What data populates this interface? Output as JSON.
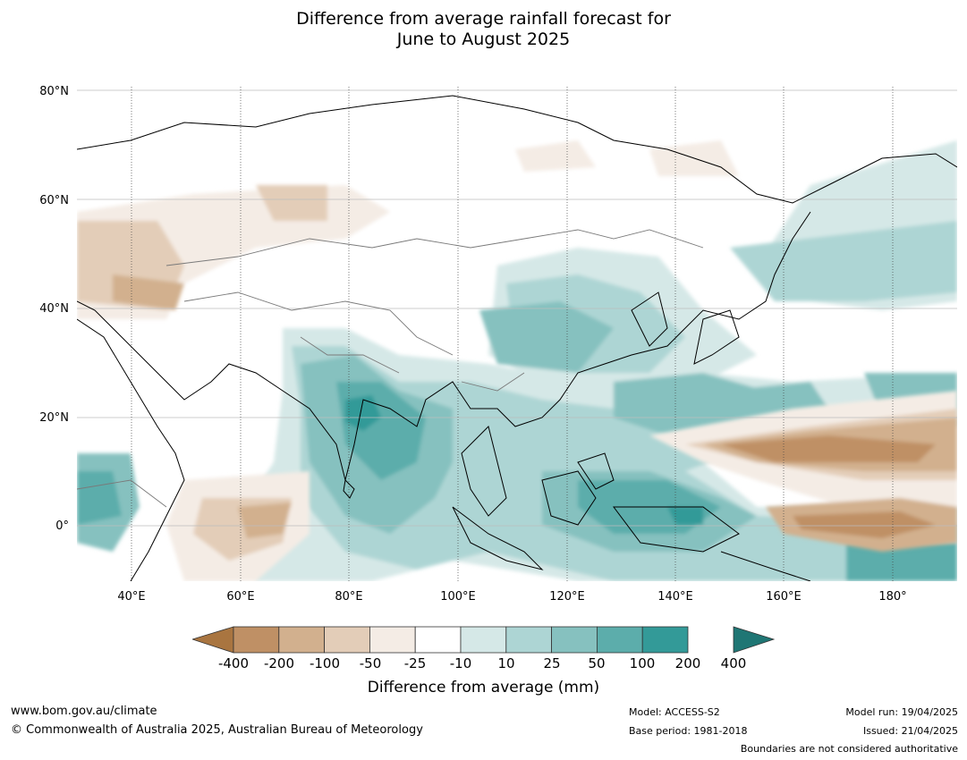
{
  "title_line1": "Difference from average rainfall forecast for",
  "title_line2": "June to August 2025",
  "axes": {
    "lat_labels": [
      "80°N",
      "60°N",
      "40°N",
      "20°N",
      "0°"
    ],
    "lon_labels": [
      "40°E",
      "60°E",
      "80°E",
      "100°E",
      "120°E",
      "140°E",
      "160°E",
      "180°"
    ]
  },
  "legend": {
    "label": "Difference from average (mm)",
    "ticks": [
      "-400",
      "-200",
      "-100",
      "-50",
      "-25",
      "-10",
      "10",
      "25",
      "50",
      "100",
      "200",
      "400"
    ],
    "colors": [
      "#a97540",
      "#bf9065",
      "#d2b08e",
      "#e3cdb8",
      "#f4ece5",
      "#ffffff",
      "#d5e8e7",
      "#add5d4",
      "#86c1bf",
      "#5cadab",
      "#339a98",
      "#1f7674"
    ]
  },
  "footer": {
    "website": "www.bom.gov.au/climate",
    "copyright": "© Commonwealth of Australia 2025, Australian Bureau of Meteorology",
    "model": "Model: ACCESS-S2",
    "base_period": "Base period: 1981-2018",
    "model_run": "Model run: 19/04/2025",
    "issued": "Issued: 21/04/2025",
    "disclaimer": "Boundaries are not considered authoritative"
  }
}
